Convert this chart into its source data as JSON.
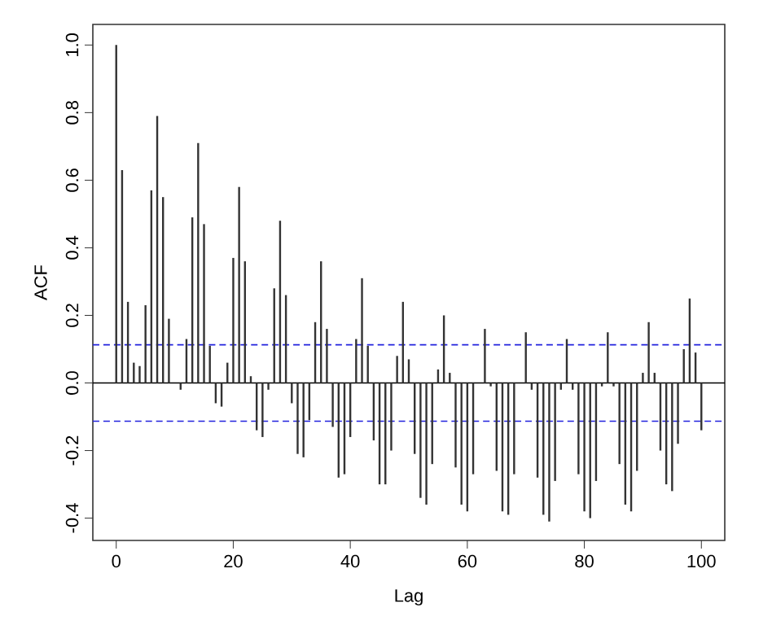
{
  "chart_data": {
    "type": "bar",
    "xlabel": "Lag",
    "ylabel": "ACF",
    "x": [
      0,
      1,
      2,
      3,
      4,
      5,
      6,
      7,
      8,
      9,
      10,
      11,
      12,
      13,
      14,
      15,
      16,
      17,
      18,
      19,
      20,
      21,
      22,
      23,
      24,
      25,
      26,
      27,
      28,
      29,
      30,
      31,
      32,
      33,
      34,
      35,
      36,
      37,
      38,
      39,
      40,
      41,
      42,
      43,
      44,
      45,
      46,
      47,
      48,
      49,
      50,
      51,
      52,
      53,
      54,
      55,
      56,
      57,
      58,
      59,
      60,
      61,
      62,
      63,
      64,
      65,
      66,
      67,
      68,
      69,
      70,
      71,
      72,
      73,
      74,
      75,
      76,
      77,
      78,
      79,
      80,
      81,
      82,
      83,
      84,
      85,
      86,
      87,
      88,
      89,
      90,
      91,
      92,
      93,
      94,
      95,
      96,
      97,
      98,
      99,
      100
    ],
    "values": [
      1.0,
      0.63,
      0.24,
      0.06,
      0.05,
      0.23,
      0.57,
      0.79,
      0.55,
      0.19,
      0.0,
      -0.02,
      0.13,
      0.49,
      0.71,
      0.47,
      0.11,
      -0.06,
      -0.07,
      0.06,
      0.37,
      0.58,
      0.36,
      0.02,
      -0.14,
      -0.16,
      -0.02,
      0.28,
      0.48,
      0.26,
      -0.06,
      -0.21,
      -0.22,
      -0.11,
      0.18,
      0.36,
      0.16,
      -0.13,
      -0.28,
      -0.27,
      -0.16,
      0.13,
      0.31,
      0.11,
      -0.17,
      -0.3,
      -0.3,
      -0.2,
      0.08,
      0.24,
      0.07,
      -0.21,
      -0.34,
      -0.36,
      -0.24,
      0.04,
      0.2,
      0.03,
      -0.25,
      -0.36,
      -0.38,
      -0.27,
      0.0,
      0.16,
      -0.01,
      -0.26,
      -0.38,
      -0.39,
      -0.27,
      0.0,
      0.15,
      -0.02,
      -0.28,
      -0.39,
      -0.41,
      -0.29,
      -0.02,
      0.13,
      -0.02,
      -0.27,
      -0.38,
      -0.4,
      -0.29,
      -0.01,
      0.15,
      -0.01,
      -0.24,
      -0.36,
      -0.38,
      -0.26,
      0.03,
      0.18,
      0.03,
      -0.2,
      -0.3,
      -0.32,
      -0.18,
      0.1,
      0.25,
      0.09,
      -0.14
    ],
    "color": "#333333",
    "xlim": [
      -4,
      104
    ],
    "ylim": [
      -0.466,
      1.061
    ],
    "xticks": [
      0,
      20,
      40,
      60,
      80,
      100
    ],
    "yticks": [
      {
        "value": -0.4,
        "label": "-0.4"
      },
      {
        "value": -0.2,
        "label": "-0.2"
      },
      {
        "value": 0,
        "label": "0.0"
      },
      {
        "value": 0.2,
        "label": "0.2"
      },
      {
        "value": 0.4,
        "label": "0.4"
      },
      {
        "value": 0.6,
        "label": "0.6"
      },
      {
        "value": 0.8,
        "label": "0.8"
      },
      {
        "value": 1.0,
        "label": "1.0"
      }
    ],
    "ref_lines": [
      {
        "axis": "y",
        "value": 0,
        "color": "#000000",
        "line_style": "solid"
      },
      {
        "axis": "y",
        "value": 0.113,
        "color": "#2222dd",
        "line_style": "dashed"
      },
      {
        "axis": "y",
        "value": -0.113,
        "color": "#2222dd",
        "line_style": "dashed"
      }
    ],
    "grid": false
  }
}
